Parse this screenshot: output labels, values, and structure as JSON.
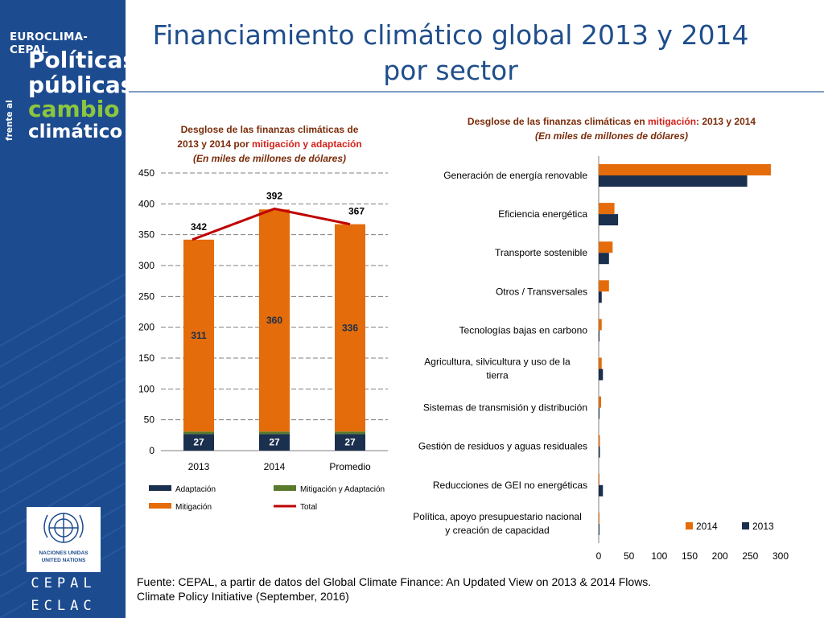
{
  "sidebar": {
    "brand_top": "EUROCLIMA-CEPAL",
    "brand_line1": "Políticas",
    "brand_line2": "públicas",
    "brand_line3": "cambio",
    "brand_line4": "climático",
    "brand_frente": "frente al",
    "un_label1": "NACIONES UNIDAS",
    "un_label2": "UNITED NATIONS",
    "cepal_label": "CEPAL",
    "eclac_label": "ECLAC"
  },
  "page_title_line1": "Financiamiento climático global 2013 y 2014",
  "page_title_line2": "por sector",
  "left_chart_title": {
    "line1": "Desglose de las finanzas climáticas de",
    "line2_a": "2013 y 2014 por ",
    "line2_b": "mitigación y adaptación",
    "line3": "(En miles de millones de dólares)"
  },
  "right_chart_title": {
    "line1_a": "Desglose de las finanzas climáticas en ",
    "line1_b": "mitigación",
    "line1_c": ": 2013 y 2014",
    "line2": "(En miles de millones de dólares)"
  },
  "source": "Fuente: CEPAL, a partir de datos del Global Climate Finance: An Updated View on 2013 & 2014 Flows. Climate Policy Initiative (September, 2016)",
  "colors": {
    "adaptacion": "#1b2f4e",
    "mitigacion_adaptacion": "#5a7a2e",
    "mitigacion": "#e46c0a",
    "total": "#c00000",
    "bar_2014": "#e46c0a",
    "bar_2013": "#1b2f4e"
  },
  "chart_data": [
    {
      "type": "bar",
      "stacked": true,
      "categories": [
        "2013",
        "2014",
        "Promedio"
      ],
      "series": [
        {
          "name": "Adaptación",
          "values": [
            27,
            27,
            27
          ]
        },
        {
          "name": "Mitigación y Adaptación",
          "values": [
            4,
            4,
            4
          ]
        },
        {
          "name": "Mitigación",
          "values": [
            311,
            360,
            336
          ]
        }
      ],
      "line_series": {
        "name": "Total",
        "values": [
          342,
          392,
          367
        ]
      },
      "ylim": [
        0,
        450
      ],
      "yticks": [
        0,
        50,
        100,
        150,
        200,
        250,
        300,
        350,
        400,
        450
      ],
      "grid": true,
      "legend": "bottom"
    },
    {
      "type": "bar",
      "orientation": "horizontal",
      "categories": [
        "Generación de energía renovable",
        "Eficiencia energética",
        "Transporte sostenible",
        "Otros / Transversales",
        "Tecnologías bajas en carbono",
        "Agricultura, silvicultura y uso de la tierra",
        "Sistemas de transmisión y distribución",
        "Gestión de residuos y aguas residuales",
        "Reducciones de GEI no energéticas",
        "Política, apoyo presupuestario nacional y creación de capacidad"
      ],
      "series": [
        {
          "name": "2014",
          "values": [
            284,
            26,
            23,
            17,
            5,
            5,
            4,
            2,
            1,
            1
          ]
        },
        {
          "name": "2013",
          "values": [
            245,
            32,
            17,
            5,
            1,
            7,
            1,
            2,
            7,
            1
          ]
        }
      ],
      "xlim": [
        0,
        300
      ],
      "xticks": [
        0,
        50,
        100,
        150,
        200,
        250,
        300
      ],
      "grid": false,
      "legend": "bottom-right"
    }
  ]
}
